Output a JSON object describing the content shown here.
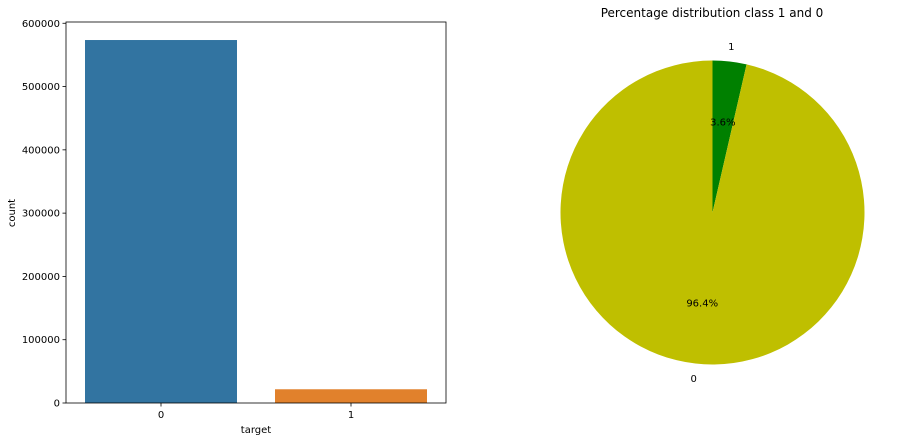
{
  "chart_data": [
    {
      "type": "bar",
      "title": "",
      "xlabel": "target",
      "ylabel": "count",
      "categories": [
        "0",
        "1"
      ],
      "values": [
        573518,
        21694
      ],
      "colors": [
        "#3274a1",
        "#e1812c"
      ],
      "ylim": [
        0,
        602000
      ],
      "yticks": [
        0,
        100000,
        200000,
        300000,
        400000,
        500000,
        600000
      ],
      "ytick_labels": [
        "0",
        "100000",
        "200000",
        "300000",
        "400000",
        "500000",
        "600000"
      ],
      "grid": false
    },
    {
      "type": "pie",
      "title": "Percentage distribution class 1 and 0",
      "labels": [
        "1",
        "0"
      ],
      "values": [
        3.6,
        96.4
      ],
      "pct_labels": [
        "3.6%",
        "96.4%"
      ],
      "colors": [
        "#008000",
        "#bfbf00"
      ],
      "start_angle": 90,
      "direction": "clockwise"
    }
  ]
}
